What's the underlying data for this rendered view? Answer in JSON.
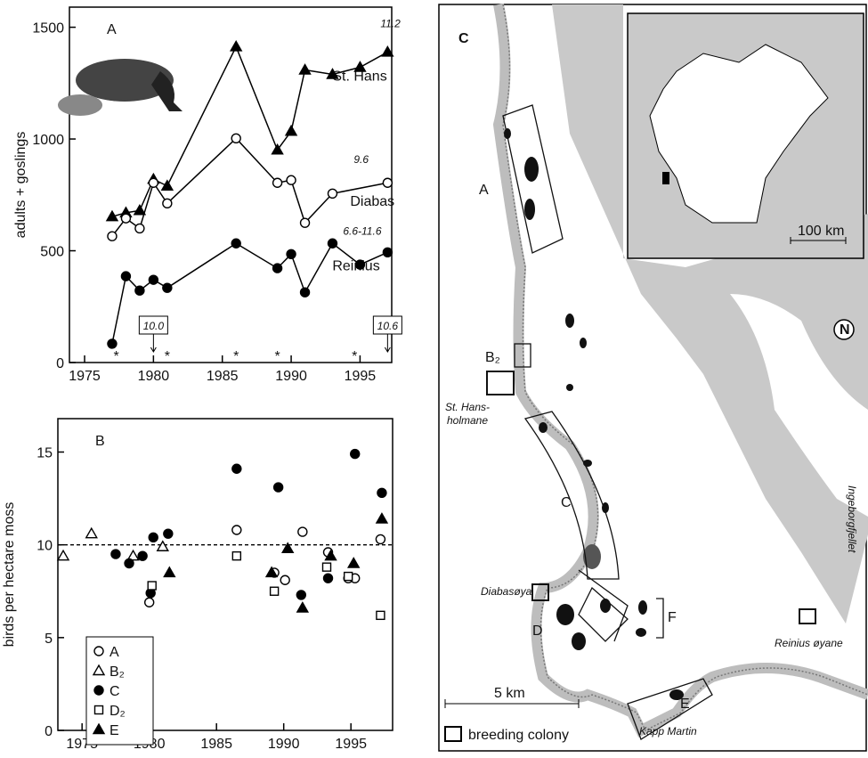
{
  "chart_data": [
    {
      "type": "line",
      "panel_label": "A",
      "ylabel": "adults + goslings",
      "xlim": [
        1973.9,
        1997.3
      ],
      "ylim": [
        0,
        1590
      ],
      "xticks": [
        1975,
        1980,
        1985,
        1990,
        1995
      ],
      "yticks": [
        0,
        500,
        1000,
        1500
      ],
      "series": [
        {
          "name": "St. Hans",
          "note": "11.2",
          "marker": "triangle",
          "filled": true,
          "color": "#000000",
          "x": [
            1977,
            1978,
            1979,
            1980,
            1981,
            1986,
            1989,
            1990,
            1991,
            1993,
            1995,
            1997
          ],
          "values": [
            653,
            670,
            680,
            820,
            790,
            1413,
            951,
            1035,
            1309,
            1289,
            1321,
            1389
          ]
        },
        {
          "name": "Diabas",
          "note": "9.6",
          "marker": "circle",
          "filled": false,
          "color": "#000000",
          "x": [
            1977,
            1978,
            1979,
            1980,
            1981,
            1986,
            1989,
            1990,
            1991,
            1993,
            1997
          ],
          "values": [
            565,
            645,
            600,
            804,
            712,
            1003,
            804,
            816,
            625,
            756,
            804
          ]
        },
        {
          "name": "Reinius",
          "note": "6.6-11.6",
          "marker": "circle",
          "filled": true,
          "color": "#000000",
          "x": [
            1977,
            1978,
            1979,
            1980,
            1981,
            1986,
            1989,
            1990,
            1991,
            1993,
            1995,
            1997
          ],
          "values": [
            84,
            386,
            322,
            370,
            334,
            533,
            422,
            485,
            314,
            533,
            438,
            493
          ]
        }
      ],
      "annotations": [
        {
          "x": 1980,
          "label": "10.0"
        },
        {
          "x": 1997,
          "label": "10.6"
        }
      ],
      "star_years": [
        1977.3,
        1981,
        1986,
        1989,
        1994.6
      ],
      "star_label": "*"
    },
    {
      "type": "scatter",
      "panel_label": "B",
      "ylabel": "birds per hectare moss",
      "xlim": [
        1973.2,
        1998.1
      ],
      "ylim": [
        0,
        16.8
      ],
      "xticks": [
        1975,
        1980,
        1985,
        1990,
        1995
      ],
      "yticks": [
        0,
        5,
        10,
        15
      ],
      "ref_line": 10,
      "series": [
        {
          "name": "A",
          "marker": "circle",
          "filled": false,
          "color": "#000000",
          "x": [
            1980,
            1986.5,
            1989.3,
            1990.1,
            1991.4,
            1993.3,
            1994.8,
            1995.3,
            1997.2
          ],
          "values": [
            6.9,
            10.8,
            8.5,
            8.1,
            10.7,
            9.6,
            8.2,
            8.2,
            10.3
          ]
        },
        {
          "name": "B₂",
          "marker": "triangle",
          "filled": false,
          "color": "#000000",
          "x": [
            1973.6,
            1975.7,
            1978.8,
            1981
          ],
          "values": [
            9.4,
            10.6,
            9.4,
            9.9
          ]
        },
        {
          "name": "C",
          "marker": "circle",
          "filled": true,
          "color": "#000000",
          "x": [
            1977.5,
            1978.5,
            1979.5,
            1980.3,
            1981.4,
            1980.1,
            1986.5,
            1989.6,
            1991.3,
            1993.3,
            1995.3,
            1997.3
          ],
          "values": [
            9.5,
            9.0,
            9.4,
            10.4,
            10.6,
            7.4,
            14.1,
            13.1,
            7.3,
            8.2,
            14.9,
            12.8
          ]
        },
        {
          "name": "D₂",
          "marker": "square",
          "filled": false,
          "color": "#000000",
          "x": [
            1980.2,
            1986.5,
            1989.3,
            1993.2,
            1994.8,
            1997.2
          ],
          "values": [
            7.8,
            9.4,
            7.5,
            8.8,
            8.3,
            6.2
          ]
        },
        {
          "name": "E",
          "marker": "triangle",
          "filled": true,
          "color": "#000000",
          "x": [
            1981.5,
            1989.1,
            1990.3,
            1991.4,
            1993.5,
            1995.2,
            1997.3
          ],
          "values": [
            8.5,
            8.5,
            9.8,
            6.6,
            9.4,
            9.0,
            11.4
          ]
        }
      ]
    }
  ],
  "map": {
    "panel_label": "C",
    "labels": [
      "A",
      "B₂",
      "St. Hans-",
      "holmane",
      "C",
      "Diabasøya",
      "D",
      "E",
      "F",
      "Kapp Martin",
      "Reinius øyane",
      "Ingeborgfjellet"
    ],
    "scale_bar": "5 km",
    "inset_scale": "100 km",
    "north": "N",
    "legend": "breeding colony"
  }
}
